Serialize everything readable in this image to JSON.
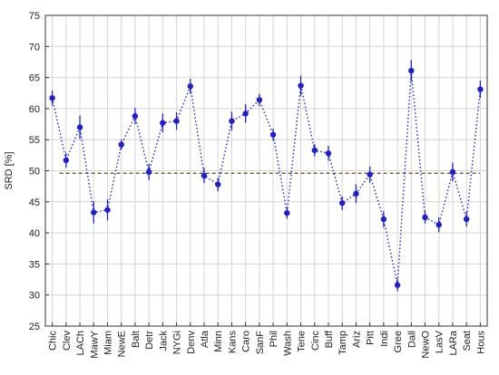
{
  "chart_data": {
    "type": "line",
    "title": "",
    "xlabel": "",
    "ylabel": "SRD [%]",
    "ylim": [
      25,
      75
    ],
    "yticks": [
      25,
      30,
      35,
      40,
      45,
      50,
      55,
      60,
      65,
      70,
      75
    ],
    "grid": true,
    "reference_line": 49.6,
    "colors": {
      "series": "#1f1fd1",
      "reference": "#5a4a1a",
      "grid": "#d4d4d4"
    },
    "categories": [
      "Chic",
      "Clev",
      "LACh",
      "MawY",
      "Miam",
      "NewE",
      "Balt",
      "Detr",
      "Jack",
      "NYGi",
      "Denv",
      "Atla",
      "Minn",
      "Kans",
      "Caro",
      "SanF",
      "Phil",
      "Wash",
      "Tene",
      "Cinc",
      "Buff",
      "Tamp",
      "Ariz",
      "Pitt",
      "Indi",
      "Gree",
      "Dall",
      "NewO",
      "LasV",
      "LARa",
      "Seat",
      "Hous"
    ],
    "series": [
      {
        "values": [
          61.7,
          51.7,
          57.0,
          43.3,
          43.7,
          54.2,
          58.8,
          49.8,
          57.7,
          58.0,
          63.6,
          49.2,
          47.8,
          58.0,
          59.2,
          61.4,
          55.8,
          43.2,
          63.7,
          53.3,
          52.8,
          44.8,
          46.3,
          49.4,
          42.2,
          31.6,
          66.1,
          42.5,
          41.3,
          49.8,
          42.2,
          63.1
        ],
        "error": [
          1.2,
          1.2,
          1.9,
          1.8,
          1.7,
          0.8,
          1.3,
          1.3,
          1.5,
          1.4,
          1.2,
          1.2,
          1.1,
          1.5,
          1.5,
          1.0,
          1.0,
          0.9,
          1.6,
          1.0,
          1.2,
          1.1,
          1.5,
          1.3,
          1.3,
          1.0,
          1.7,
          1.0,
          1.2,
          1.5,
          1.2,
          1.4
        ]
      }
    ]
  }
}
